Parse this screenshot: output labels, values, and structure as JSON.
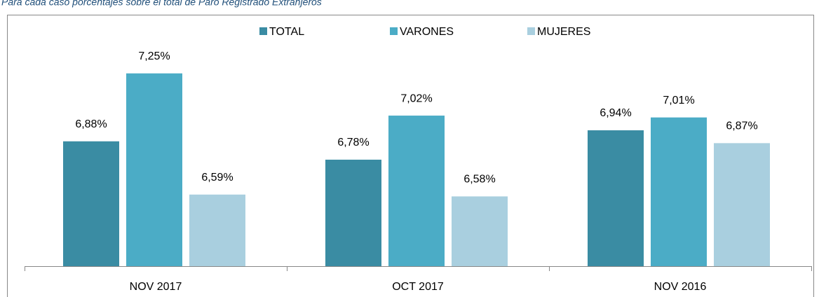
{
  "chart_data": {
    "type": "bar",
    "subtitle": "Para cada caso porcentajes sobre el total de Paro Registrado Extranjeros",
    "categories": [
      "NOV 2017",
      "OCT 2017",
      "NOV 2016"
    ],
    "series": [
      {
        "name": "TOTAL",
        "color": "#3a8ca3",
        "values": [
          6.88,
          6.78,
          6.94
        ],
        "value_labels": [
          "6,88%",
          "6,78%",
          "6,94%"
        ]
      },
      {
        "name": "VARONES",
        "color": "#4bacc6",
        "values": [
          7.25,
          7.02,
          7.01
        ],
        "value_labels": [
          "7,25%",
          "7,02%",
          "7,01%"
        ]
      },
      {
        "name": "MUJERES",
        "color": "#a9cfdf",
        "values": [
          6.59,
          6.58,
          6.87
        ],
        "value_labels": [
          "6,59%",
          "6,58%",
          "6,87%"
        ]
      }
    ],
    "ylim": [
      6.2,
      7.6
    ],
    "legend": "top"
  }
}
